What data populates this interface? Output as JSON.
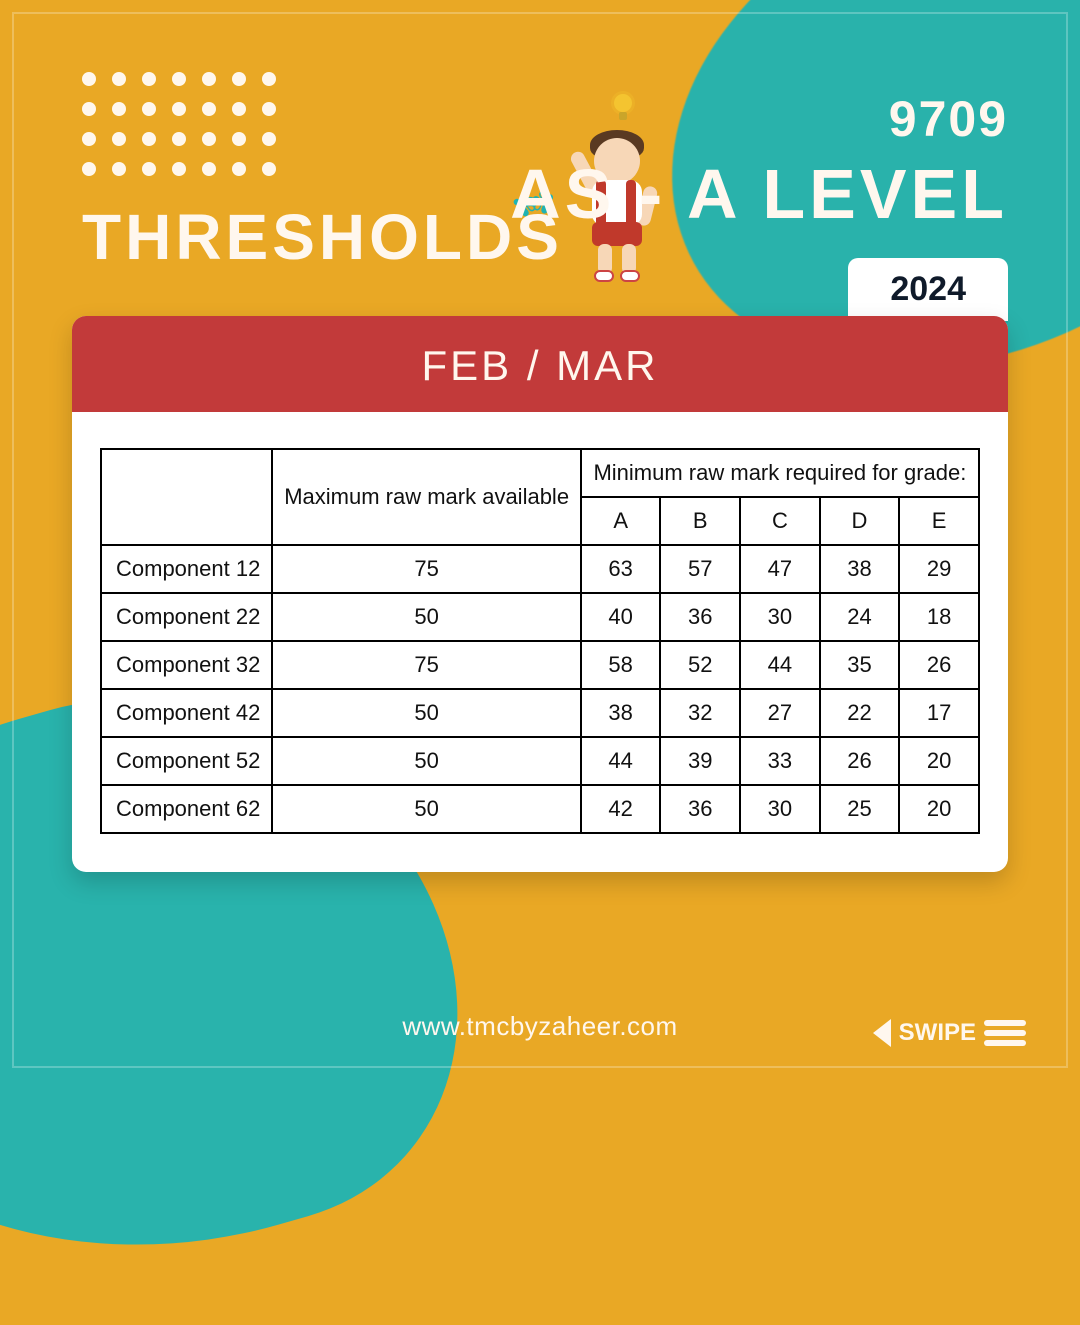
{
  "colors": {
    "background": "#e9a825",
    "teal": "#1fb3b3",
    "offwhite": "#fff7ee",
    "headerRed": "#c23a3a",
    "yearText": "#0f1a2a",
    "tableBorder": "#000000",
    "tableText": "#111111"
  },
  "header": {
    "leftTitle": "THRESHOLDS",
    "code": "9709",
    "level": "AS - A LEVEL",
    "year": "2024"
  },
  "card": {
    "session": "FEB / MAR"
  },
  "table": {
    "type": "table",
    "spanHeader": "Minimum raw mark required for grade:",
    "maxHeader": "Maximum raw mark available",
    "grades": [
      "A",
      "B",
      "C",
      "D",
      "E"
    ],
    "columnAlign": [
      "left",
      "center",
      "center",
      "center",
      "center",
      "center",
      "center"
    ],
    "fontsize": 22,
    "border_color": "#000000",
    "rows": [
      {
        "label": "Component 12",
        "max": 75,
        "marks": [
          63,
          57,
          47,
          38,
          29
        ]
      },
      {
        "label": "Component 22",
        "max": 50,
        "marks": [
          40,
          36,
          30,
          24,
          18
        ]
      },
      {
        "label": "Component 32",
        "max": 75,
        "marks": [
          58,
          52,
          44,
          35,
          26
        ]
      },
      {
        "label": "Component 42",
        "max": 50,
        "marks": [
          38,
          32,
          27,
          22,
          17
        ]
      },
      {
        "label": "Component 52",
        "max": 50,
        "marks": [
          44,
          39,
          33,
          26,
          20
        ]
      },
      {
        "label": "Component 62",
        "max": 50,
        "marks": [
          42,
          36,
          30,
          25,
          20
        ]
      }
    ]
  },
  "footer": {
    "url": "www.tmcbyzaheer.com",
    "swipe": "SWIPE"
  }
}
